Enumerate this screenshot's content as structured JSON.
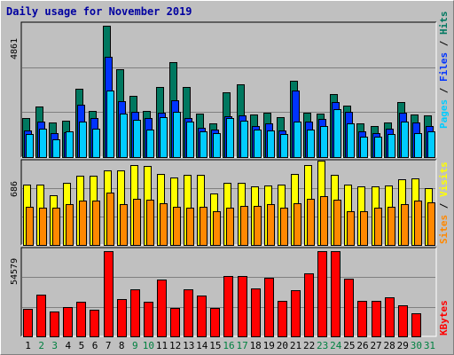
{
  "title": "Daily usage for November 2019",
  "colors": {
    "hits": "#007860",
    "files": "#0033ff",
    "pages": "#00ccff",
    "visits": "#ffff00",
    "sites": "#ff8800",
    "kbytes": "#ff0000",
    "weekend_label": "#008040",
    "weekday_label": "#000000",
    "title": "#0000a0"
  },
  "chart_data": [
    {
      "type": "bar",
      "panel": "top",
      "ymax_label": "4861",
      "ylim": [
        0,
        4861
      ],
      "legend": [
        "Pages",
        "Files",
        "Hits"
      ],
      "legend_separator": " / ",
      "categories": [
        "1",
        "2",
        "3",
        "4",
        "5",
        "6",
        "7",
        "8",
        "9",
        "10",
        "11",
        "12",
        "13",
        "14",
        "15",
        "16",
        "17",
        "18",
        "19",
        "20",
        "21",
        "22",
        "23",
        "24",
        "25",
        "26",
        "27",
        "28",
        "29",
        "30",
        "31"
      ],
      "series": [
        {
          "name": "Hits",
          "values": [
            1430,
            1880,
            1290,
            1340,
            2540,
            1700,
            4860,
            3260,
            2260,
            1720,
            2590,
            3530,
            2610,
            1620,
            1250,
            2410,
            2700,
            1580,
            1650,
            1470,
            2820,
            1640,
            1610,
            2340,
            1920,
            1240,
            1140,
            1280,
            2020,
            1570,
            1560
          ]
        },
        {
          "name": "Files",
          "values": [
            990,
            1310,
            880,
            920,
            1950,
            1440,
            3700,
            2080,
            1660,
            1460,
            1640,
            2110,
            1450,
            1090,
            1010,
            1510,
            1530,
            1160,
            1240,
            1000,
            2450,
            1300,
            1400,
            2030,
            1660,
            950,
            880,
            1050,
            1640,
            1280,
            1160
          ]
        },
        {
          "name": "Pages",
          "values": [
            850,
            1050,
            650,
            950,
            1300,
            1060,
            2460,
            1620,
            1380,
            1020,
            1490,
            1690,
            1330,
            940,
            900,
            1430,
            1340,
            1010,
            1000,
            870,
            1320,
            1030,
            1160,
            1760,
            1260,
            760,
            760,
            860,
            1310,
            880,
            960
          ]
        }
      ]
    },
    {
      "type": "bar",
      "panel": "middle",
      "ymax_label": "686",
      "ylim": [
        0,
        686
      ],
      "legend": [
        "Sites",
        "Visits"
      ],
      "legend_separator": " / ",
      "categories": [
        "1",
        "2",
        "3",
        "4",
        "5",
        "6",
        "7",
        "8",
        "9",
        "10",
        "11",
        "12",
        "13",
        "14",
        "15",
        "16",
        "17",
        "18",
        "19",
        "20",
        "21",
        "22",
        "23",
        "24",
        "25",
        "26",
        "27",
        "28",
        "29",
        "30",
        "31"
      ],
      "series": [
        {
          "name": "Visits",
          "values": [
            510,
            510,
            420,
            520,
            580,
            580,
            630,
            630,
            670,
            660,
            600,
            570,
            590,
            590,
            430,
            520,
            520,
            490,
            500,
            510,
            600,
            670,
            710,
            590,
            510,
            490,
            490,
            500,
            550,
            560,
            480
          ]
        },
        {
          "name": "Sites",
          "values": [
            320,
            310,
            310,
            340,
            370,
            370,
            440,
            340,
            390,
            380,
            350,
            320,
            310,
            320,
            280,
            310,
            330,
            330,
            340,
            310,
            350,
            390,
            410,
            380,
            280,
            280,
            310,
            320,
            340,
            370,
            360
          ]
        }
      ]
    },
    {
      "type": "bar",
      "panel": "bottom",
      "ymax_label": "54579",
      "ylim": [
        0,
        54579
      ],
      "legend": [
        "KBytes"
      ],
      "legend_separator": " / ",
      "categories": [
        "1",
        "2",
        "3",
        "4",
        "5",
        "6",
        "7",
        "8",
        "9",
        "10",
        "11",
        "12",
        "13",
        "14",
        "15",
        "16",
        "17",
        "18",
        "19",
        "20",
        "21",
        "22",
        "23",
        "24",
        "25",
        "26",
        "27",
        "28",
        "29",
        "30",
        "31"
      ],
      "series": [
        {
          "name": "KBytes",
          "values": [
            17500,
            26500,
            15800,
            18800,
            22400,
            17200,
            54500,
            23900,
            30300,
            22000,
            36400,
            18200,
            30400,
            26000,
            18200,
            38400,
            38600,
            30800,
            37400,
            23000,
            29800,
            40400,
            54500,
            54500,
            36700,
            22500,
            22500,
            24800,
            19800,
            14500,
            0
          ]
        }
      ]
    }
  ],
  "weekend_days": [
    2,
    3,
    9,
    10,
    16,
    17,
    23,
    24,
    30,
    31
  ]
}
